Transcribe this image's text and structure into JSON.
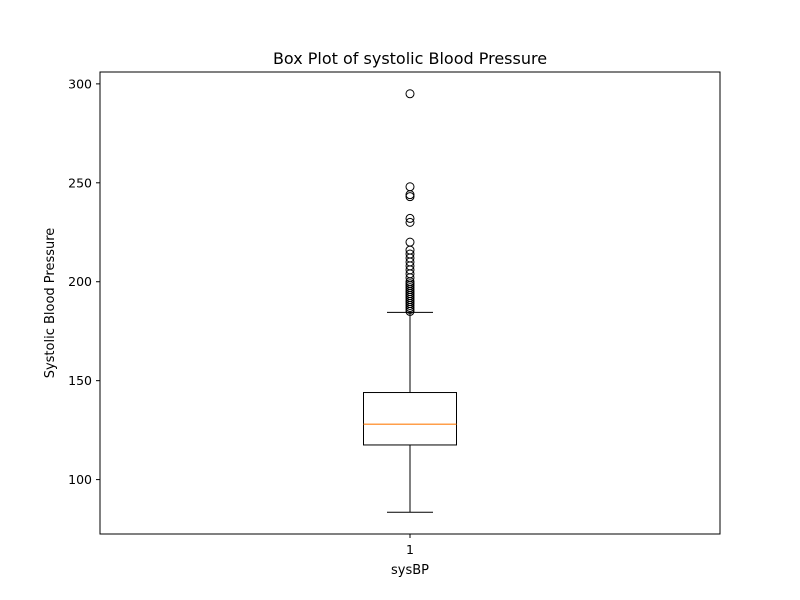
{
  "chart_data": {
    "type": "box",
    "title": "Box Plot of systolic Blood Pressure",
    "xlabel": "sysBP",
    "ylabel": "Systolic Blood Pressure",
    "categories": [
      "1"
    ],
    "ylim": [
      72.5,
      306.0
    ],
    "yticks": [
      100,
      150,
      200,
      250,
      300
    ],
    "series": [
      {
        "whisker_low": 83.5,
        "q1": 117.5,
        "median": 128.0,
        "q3": 144.0,
        "whisker_high": 184.5,
        "outliers": [
          185,
          186,
          187,
          188,
          189,
          190,
          191,
          192,
          193,
          194,
          195,
          196,
          197,
          198,
          199,
          200,
          202,
          204,
          206,
          208,
          210,
          212,
          214,
          216,
          220,
          230,
          232,
          243,
          244,
          248,
          295
        ]
      }
    ],
    "colors": {
      "box": "#000000",
      "median": "#ff7f0e",
      "outlier": "#000000"
    },
    "grid": false
  }
}
